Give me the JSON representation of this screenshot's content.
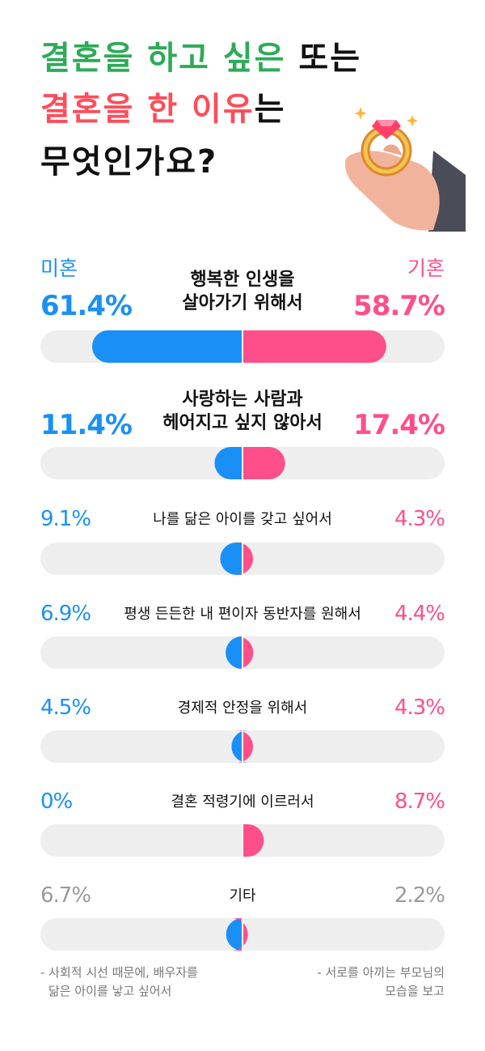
{
  "title": {
    "line1": {
      "text": "결혼을 하고 싶은",
      "suffix": "또는"
    },
    "line2": {
      "text": "결혼을 한 이유",
      "suffix": "는"
    },
    "line3": "무엇인가요?"
  },
  "colors": {
    "unmarried": "#1a90f6",
    "married": "#ff4f8b",
    "other": "#9a9a9a",
    "track": "#eeeeee",
    "title_green": "#2eaa58",
    "title_red": "#ff4d5a",
    "title_black": "#111111"
  },
  "icons": {
    "illustration": "hand-holding-ring-icon"
  },
  "groups": {
    "left": "미혼",
    "right": "기혼"
  },
  "chart_data": {
    "type": "bar",
    "orientation": "diverging-horizontal",
    "categories": [
      "행복한 인생을 살아가기 위해서",
      "사랑하는 사람과 헤어지고 싶지 않아서",
      "나를 닮은 아이를 갖고 싶어서",
      "평생 든든한 내 편이자 동반자를 원해서",
      "경제적 안정을 위해서",
      "결혼 적령기에 이르러서",
      "기타"
    ],
    "category_lines": [
      [
        "행복한 인생을",
        "살아가기 위해서"
      ],
      [
        "사랑하는 사람과",
        "헤어지고 싶지 않아서"
      ],
      [
        "나를 닮은 아이를 갖고 싶어서"
      ],
      [
        "평생 든든한 내 편이자 동반자를 원해서"
      ],
      [
        "경제적 안정을 위해서"
      ],
      [
        "결혼 적령기에 이르러서"
      ],
      [
        "기타"
      ]
    ],
    "series": [
      {
        "name": "미혼",
        "values": [
          61.4,
          11.4,
          9.1,
          6.9,
          4.5,
          0,
          6.7
        ],
        "labels": [
          "61.4%",
          "11.4%",
          "9.1%",
          "6.9%",
          "4.5%",
          "0%",
          "6.7%"
        ]
      },
      {
        "name": "기혼",
        "values": [
          58.7,
          17.4,
          4.3,
          4.4,
          4.3,
          8.7,
          2.2
        ],
        "labels": [
          "58.7%",
          "17.4%",
          "4.3%",
          "4.4%",
          "4.3%",
          "8.7%",
          "2.2%"
        ]
      }
    ],
    "notes": {
      "left": [
        "- 사회적 시선 때문에, 배우자를",
        "닮은 아이를 낳고 싶어서"
      ],
      "right": [
        "- 서로를 아끼는 부모님의",
        "모습을 보고"
      ]
    }
  }
}
